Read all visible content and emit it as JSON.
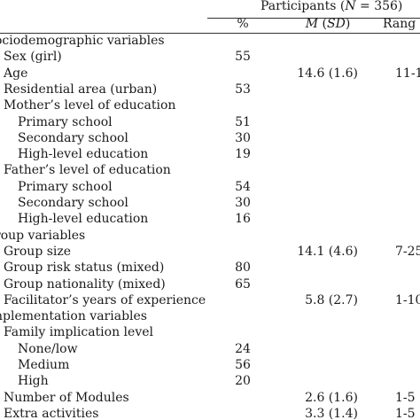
{
  "header": {
    "participants_prefix": "Participants (",
    "participants_n": "N",
    "participants_suffix": " = 356)",
    "col_pct": "%",
    "col_mean_m": "M",
    "col_mean_open": " (",
    "col_mean_sd": "SD",
    "col_mean_close": ")",
    "col_range": "Rang"
  },
  "rows": [
    {
      "label": "ociodemographic variables",
      "pct": "",
      "mean": "",
      "range": ""
    },
    {
      "label": "Sex (girl)",
      "pct": "55",
      "mean": "",
      "range": ""
    },
    {
      "label": "Age",
      "pct": "",
      "mean": "14.6 (1.6)",
      "range": "11-1"
    },
    {
      "label": "Residential area (urban)",
      "pct": "53",
      "mean": "",
      "range": ""
    },
    {
      "label": "Mother’s level of education",
      "pct": "",
      "mean": "",
      "range": ""
    },
    {
      "label": "Primary school",
      "pct": "51",
      "mean": "",
      "range": ""
    },
    {
      "label": "Secondary school",
      "pct": "30",
      "mean": "",
      "range": ""
    },
    {
      "label": "High-level education",
      "pct": "19",
      "mean": "",
      "range": ""
    },
    {
      "label": "Father’s level of education",
      "pct": "",
      "mean": "",
      "range": ""
    },
    {
      "label": "Primary school",
      "pct": "54",
      "mean": "",
      "range": ""
    },
    {
      "label": "Secondary school",
      "pct": "30",
      "mean": "",
      "range": ""
    },
    {
      "label": "High-level education",
      "pct": "16",
      "mean": "",
      "range": ""
    },
    {
      "label": "roup variables",
      "pct": "",
      "mean": "",
      "range": ""
    },
    {
      "label": "Group size",
      "pct": "",
      "mean": "14.1 (4.6)",
      "range": "7-25"
    },
    {
      "label": "Group risk status (mixed)",
      "pct": "80",
      "mean": "",
      "range": ""
    },
    {
      "label": "Group nationality (mixed)",
      "pct": "65",
      "mean": "",
      "range": ""
    },
    {
      "label": "Facilitator’s years of experience",
      "pct": "",
      "mean": "5.8 (2.7)",
      "range": "1-10"
    },
    {
      "label": "nplementation variables",
      "pct": "",
      "mean": "",
      "range": ""
    },
    {
      "label": "Family implication level",
      "pct": "",
      "mean": "",
      "range": ""
    },
    {
      "label": "None/low",
      "pct": "24",
      "mean": "",
      "range": ""
    },
    {
      "label": "Medium",
      "pct": "56",
      "mean": "",
      "range": ""
    },
    {
      "label": "High",
      "pct": "20",
      "mean": "",
      "range": ""
    },
    {
      "label": "Number of Modules",
      "pct": "",
      "mean": "2.6 (1.6)",
      "range": "1-5"
    },
    {
      "label": "Extra activities",
      "pct": "",
      "mean": "3.3 (1.4)",
      "range": "1-5"
    }
  ]
}
